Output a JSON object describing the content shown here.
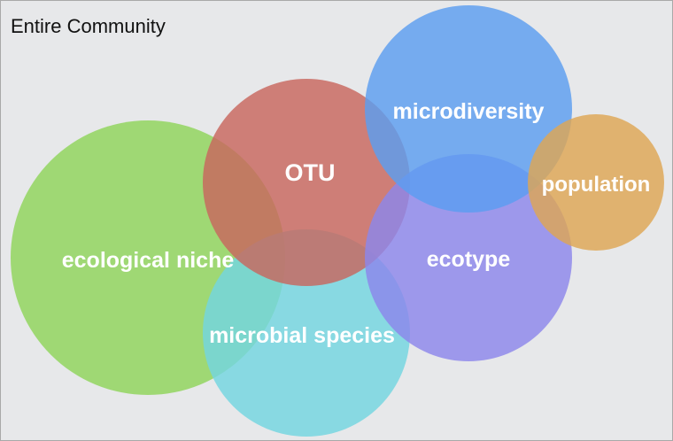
{
  "title": "Entire Community",
  "circles": {
    "ecological_niche": {
      "label": "ecological niche",
      "color": "#8fd45a"
    },
    "microbial_species": {
      "label": "microbial species",
      "color": "#73d6e0"
    },
    "otu": {
      "label": "OTU",
      "color": "#c8675e"
    },
    "microdiversity": {
      "label": "microdiversity",
      "color": "#5b9df0"
    },
    "ecotype": {
      "label": "ecotype",
      "color": "#8c86ec"
    },
    "population": {
      "label": "population",
      "color": "#dea654"
    }
  }
}
